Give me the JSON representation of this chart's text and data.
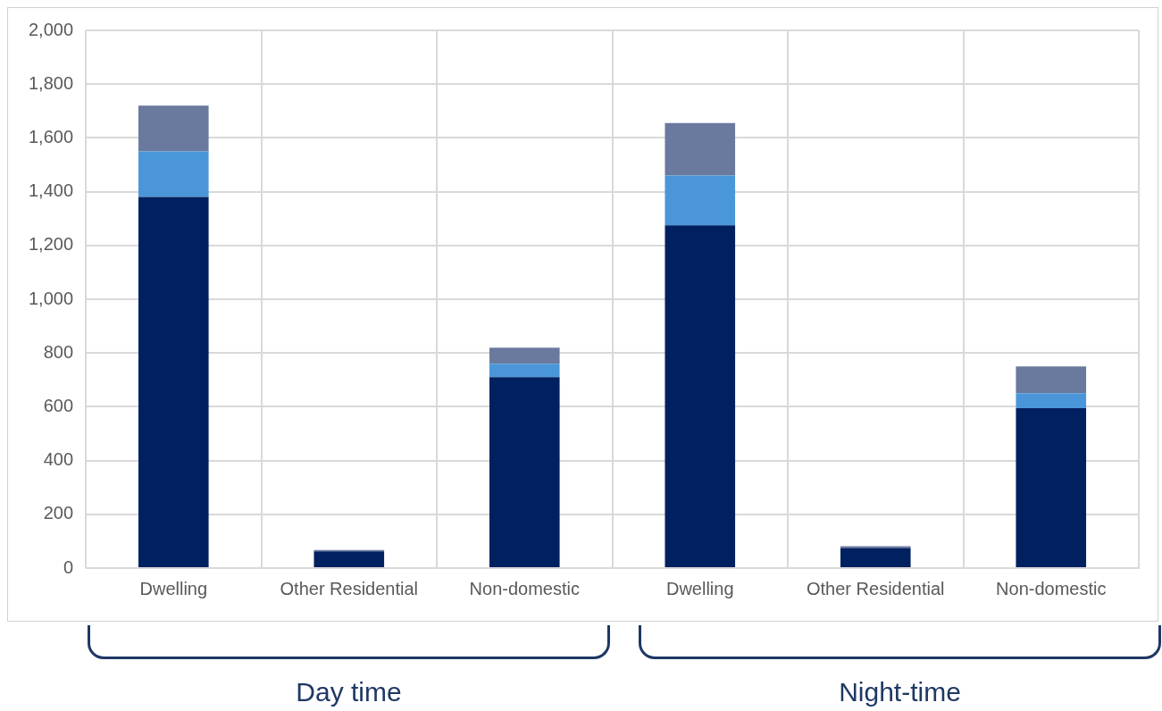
{
  "chart_data": {
    "type": "bar",
    "stacked": true,
    "categories": [
      "Dwelling",
      "Other Residential",
      "Non-domestic",
      "Dwelling",
      "Other Residential",
      "Non-domestic"
    ],
    "series": [
      {
        "color": "#002060",
        "values": [
          1380,
          62,
          710,
          1275,
          75,
          595
        ]
      },
      {
        "color": "#4a96d8",
        "values": [
          170,
          0,
          50,
          185,
          0,
          55
        ]
      },
      {
        "color": "#6a7a9e",
        "values": [
          170,
          5,
          60,
          195,
          6,
          100
        ]
      }
    ],
    "ylim": [
      0,
      2000
    ],
    "yticks": [
      {
        "value": 0,
        "label": "0"
      },
      {
        "value": 200,
        "label": "200"
      },
      {
        "value": 400,
        "label": "400"
      },
      {
        "value": 600,
        "label": "600"
      },
      {
        "value": 800,
        "label": "800"
      },
      {
        "value": 1000,
        "label": "1,000"
      },
      {
        "value": 1200,
        "label": "1,200"
      },
      {
        "value": 1400,
        "label": "1,400"
      },
      {
        "value": 1600,
        "label": "1,600"
      },
      {
        "value": 1800,
        "label": "1,800"
      },
      {
        "value": 2000,
        "label": "2,000"
      }
    ],
    "grid": true,
    "legend": false,
    "annotations": [
      "Day time",
      "Night-time"
    ]
  }
}
